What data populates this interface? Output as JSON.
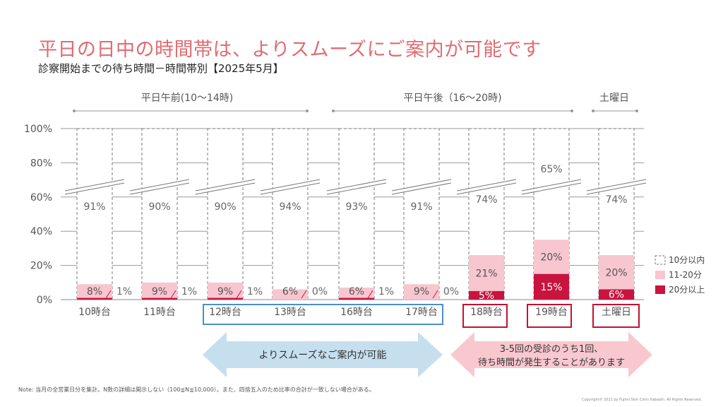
{
  "title": "平日の日中の時間帯は、よりスムーズにご案内が可能です",
  "subtitle": "診察開始までの待ち時間－時間帯別【2025年5月】",
  "groups": [
    {
      "label": "平日午前(10～14時)"
    },
    {
      "label": "平日午後（16～20時)"
    },
    {
      "label": "土曜日"
    }
  ],
  "chart_data": {
    "type": "bar",
    "stacked": true,
    "yticks": [
      "0%",
      "20%",
      "40%",
      "60%",
      "80%",
      "100%"
    ],
    "ylim": [
      0,
      100
    ],
    "y_axis_break": true,
    "categories": [
      "10時台",
      "11時台",
      "12時台",
      "13時台",
      "16時台",
      "17時台",
      "18時台",
      "19時台",
      "土曜日"
    ],
    "series": [
      {
        "name": "20分以上",
        "color": "#c8143e",
        "values": [
          1,
          1,
          1,
          0,
          1,
          0,
          5,
          15,
          6
        ],
        "labels": [
          "1%",
          "1%",
          "1%",
          "0%",
          "1%",
          "0%",
          "5%",
          "15%",
          "6%"
        ]
      },
      {
        "name": "11-20分",
        "color": "#f7c6cf",
        "values": [
          8,
          9,
          9,
          6,
          6,
          9,
          21,
          20,
          20
        ],
        "labels": [
          "8%",
          "9%",
          "9%",
          "6%",
          "6%",
          "9%",
          "21%",
          "20%",
          "20%"
        ]
      },
      {
        "name": "10分以内",
        "color": "#ffffff",
        "values": [
          91,
          90,
          90,
          94,
          93,
          91,
          74,
          65,
          74
        ],
        "labels": [
          "91%",
          "90%",
          "90%",
          "94%",
          "93%",
          "91%",
          "74%",
          "65%",
          "74%"
        ]
      }
    ],
    "legend_position": "right",
    "grid": true
  },
  "callouts": [
    {
      "text": "よりスムーズなご案内が可能"
    },
    {
      "line1": "3-5回の受診のうち1回、",
      "line2": "待ち時間が発生することがあります"
    }
  ],
  "note": "Note: 当月の全営業日分を集計。N数の詳細は開示しない（100≦N≦10,000）。また、四捨五入のため比率の合計が一致しない場合がある。",
  "copyright": "Copyright© 2021 by Fujimi Skin Clinic Itabashi. All Rights Reserved.",
  "colors": {
    "title": "#e06c72",
    "accent": "#c8143e",
    "light_pink": "#f7c6cf",
    "blue_box": "#4a90c8",
    "blue_arrow": "#c6dfee",
    "red_box": "#c8102e"
  }
}
